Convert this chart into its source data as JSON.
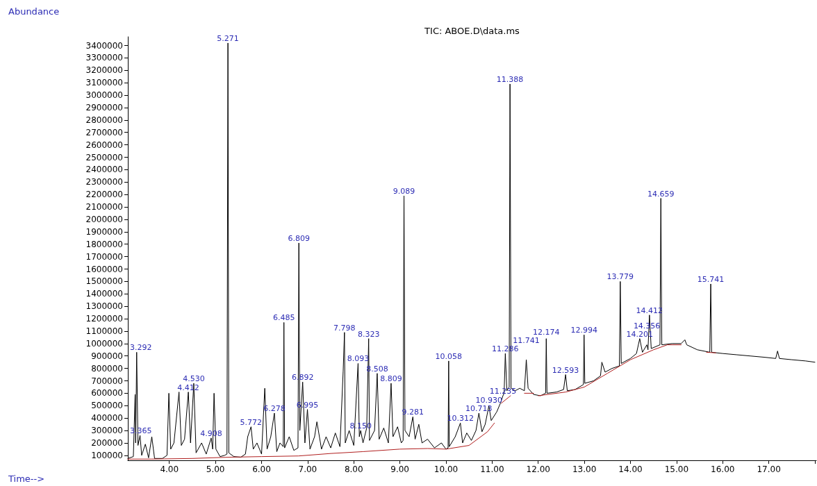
{
  "chart_data": {
    "type": "line",
    "title": "TIC: ABOE.D\\data.ms",
    "xlabel": "Time-->",
    "ylabel": "Abundance",
    "xlim": [
      3.1,
      18.03
    ],
    "xticks": [
      {
        "value": 4,
        "label": "4.00"
      },
      {
        "value": 5,
        "label": "5.00"
      },
      {
        "value": 6,
        "label": "6.00"
      },
      {
        "value": 7,
        "label": "7.00"
      },
      {
        "value": 8,
        "label": "8.00"
      },
      {
        "value": 9,
        "label": "9.00"
      },
      {
        "value": 10,
        "label": "10.00"
      },
      {
        "value": 11,
        "label": "11.00"
      },
      {
        "value": 12,
        "label": "12.00"
      },
      {
        "value": 13,
        "label": "13.00"
      },
      {
        "value": 14,
        "label": "14.00"
      },
      {
        "value": 15,
        "label": "15.00"
      },
      {
        "value": 16,
        "label": "16.00"
      },
      {
        "value": 17,
        "label": "17.00"
      },
      {
        "value": 18,
        "label": null
      }
    ],
    "ylim": [
      60000,
      3470000
    ],
    "yticks": [
      100000,
      200000,
      300000,
      400000,
      500000,
      600000,
      700000,
      800000,
      900000,
      1000000,
      1100000,
      1200000,
      1300000,
      1400000,
      1500000,
      1600000,
      1700000,
      1800000,
      1900000,
      2000000,
      2100000,
      2200000,
      2300000,
      2400000,
      2500000,
      2600000,
      2700000,
      2800000,
      2900000,
      3000000,
      3100000,
      3200000,
      3300000,
      3400000
    ],
    "series": [
      {
        "color": "#000000",
        "x": [
          3.1,
          3.22,
          3.258,
          3.27,
          3.292,
          3.32,
          3.365,
          3.4,
          3.48,
          3.55,
          3.62,
          3.68,
          3.85,
          3.95,
          3.99,
          4.03,
          4.1,
          4.21,
          4.26,
          4.33,
          4.412,
          4.46,
          4.53,
          4.58,
          4.7,
          4.8,
          4.908,
          4.94,
          4.97,
          5.01,
          5.1,
          5.2,
          5.25,
          5.271,
          5.29,
          5.4,
          5.55,
          5.65,
          5.7,
          5.772,
          5.82,
          5.9,
          6.0,
          6.07,
          6.12,
          6.2,
          6.278,
          6.33,
          6.4,
          6.47,
          6.485,
          6.5,
          6.6,
          6.7,
          6.79,
          6.809,
          6.83,
          6.892,
          6.94,
          6.995,
          7.05,
          7.15,
          7.2,
          7.3,
          7.4,
          7.5,
          7.6,
          7.7,
          7.77,
          7.798,
          7.815,
          7.9,
          8.0,
          8.093,
          8.12,
          8.15,
          8.2,
          8.28,
          8.323,
          8.34,
          8.45,
          8.508,
          8.55,
          8.65,
          8.75,
          8.809,
          8.85,
          8.95,
          9.03,
          9.07,
          9.089,
          9.11,
          9.2,
          9.281,
          9.33,
          9.41,
          9.48,
          9.6,
          9.75,
          9.9,
          10.0,
          10.045,
          10.058,
          10.07,
          10.2,
          10.312,
          10.36,
          10.45,
          10.55,
          10.65,
          10.713,
          10.78,
          10.85,
          10.93,
          10.98,
          11.1,
          11.18,
          11.235,
          11.26,
          11.286,
          11.32,
          11.37,
          11.388,
          11.41,
          11.5,
          11.6,
          11.7,
          11.741,
          11.78,
          11.9,
          12.05,
          12.16,
          12.174,
          12.19,
          12.4,
          12.55,
          12.593,
          12.63,
          12.8,
          12.98,
          12.994,
          13.01,
          13.2,
          13.35,
          13.38,
          13.45,
          13.6,
          13.76,
          13.779,
          13.8,
          14.0,
          14.13,
          14.201,
          14.26,
          14.356,
          14.38,
          14.412,
          14.45,
          14.64,
          14.659,
          14.68,
          14.9,
          15.1,
          15.18,
          15.22,
          15.45,
          15.72,
          15.741,
          15.76,
          16.0,
          16.3,
          16.6,
          16.9,
          17.15,
          17.19,
          17.23,
          17.5,
          17.8,
          18.0
        ],
        "values": [
          75000,
          90000,
          590000,
          200000,
          930000,
          180000,
          260000,
          100000,
          190000,
          80000,
          250000,
          75000,
          75000,
          100000,
          600000,
          150000,
          200000,
          610000,
          180000,
          230000,
          610000,
          200000,
          680000,
          120000,
          200000,
          110000,
          240000,
          150000,
          600000,
          150000,
          90000,
          100000,
          110000,
          3420000,
          120000,
          90000,
          85000,
          110000,
          250000,
          330000,
          150000,
          200000,
          110000,
          640000,
          150000,
          250000,
          440000,
          130000,
          200000,
          170000,
          1170000,
          160000,
          250000,
          140000,
          160000,
          1810000,
          300000,
          690000,
          200000,
          470000,
          150000,
          250000,
          370000,
          150000,
          250000,
          160000,
          280000,
          170000,
          780000,
          1090000,
          200000,
          300000,
          180000,
          840000,
          250000,
          300000,
          200000,
          320000,
          1040000,
          220000,
          300000,
          760000,
          230000,
          320000,
          200000,
          680000,
          250000,
          330000,
          200000,
          220000,
          2190000,
          300000,
          250000,
          410000,
          230000,
          350000,
          200000,
          230000,
          160000,
          200000,
          150000,
          160000,
          860000,
          170000,
          250000,
          360000,
          200000,
          280000,
          220000,
          300000,
          440000,
          290000,
          350000,
          500000,
          380000,
          450000,
          520000,
          580000,
          600000,
          920000,
          620000,
          650000,
          3090000,
          640000,
          620000,
          640000,
          620000,
          870000,
          640000,
          590000,
          580000,
          600000,
          1040000,
          600000,
          610000,
          630000,
          750000,
          620000,
          630000,
          670000,
          1070000,
          680000,
          700000,
          740000,
          850000,
          770000,
          800000,
          820000,
          1500000,
          840000,
          880000,
          920000,
          1040000,
          930000,
          990000,
          950000,
          1230000,
          960000,
          990000,
          2170000,
          990000,
          1000000,
          1000000,
          1030000,
          990000,
          950000,
          930000,
          1480000,
          930000,
          920000,
          910000,
          900000,
          890000,
          880000,
          940000,
          880000,
          870000,
          860000,
          850000
        ]
      },
      {
        "color": "#b01e1e",
        "x": [
          3.1,
          3.6,
          4.5,
          5.3,
          6.0,
          6.8,
          7.5,
          8.2,
          9.0,
          9.6,
          10.0,
          10.5,
          10.9,
          11.05,
          11.12,
          11.2,
          11.4,
          11.55,
          11.7,
          11.9,
          11.95,
          12.0,
          12.6,
          13.0,
          13.5,
          14.0,
          14.5,
          14.8,
          15.1,
          15.4,
          15.65,
          15.85
        ],
        "values": [
          70000,
          70000,
          75000,
          85000,
          90000,
          95000,
          115000,
          130000,
          150000,
          155000,
          150000,
          180000,
          290000,
          360000,
          null,
          520000,
          580000,
          null,
          600000,
          600000,
          null,
          580000,
          610000,
          650000,
          760000,
          870000,
          950000,
          990000,
          990000,
          null,
          930000,
          925000
        ]
      }
    ],
    "annotations": [
      {
        "text": "3.292",
        "x": 3.292,
        "y": 930000
      },
      {
        "text": "3.365",
        "x": 3.365,
        "y": 260000
      },
      {
        "text": "4.412",
        "x": 4.412,
        "y": 610000
      },
      {
        "text": "4.530",
        "x": 4.53,
        "y": 680000
      },
      {
        "text": "4.908",
        "x": 4.908,
        "y": 240000
      },
      {
        "text": "5.271",
        "x": 5.271,
        "y": 3420000
      },
      {
        "text": "5.772",
        "x": 5.772,
        "y": 330000
      },
      {
        "text": "6.278",
        "x": 6.278,
        "y": 440000
      },
      {
        "text": "6.485",
        "x": 6.485,
        "y": 1170000
      },
      {
        "text": "6.809",
        "x": 6.809,
        "y": 1810000
      },
      {
        "text": "6.892",
        "x": 6.892,
        "y": 690000
      },
      {
        "text": "6.995",
        "x": 6.995,
        "y": 470000
      },
      {
        "text": "7.798",
        "x": 7.798,
        "y": 1090000
      },
      {
        "text": "8.093",
        "x": 8.093,
        "y": 840000
      },
      {
        "text": "8.150",
        "x": 8.15,
        "y": 300000
      },
      {
        "text": "8.323",
        "x": 8.323,
        "y": 1040000
      },
      {
        "text": "8.508",
        "x": 8.508,
        "y": 760000
      },
      {
        "text": "8.809",
        "x": 8.809,
        "y": 680000
      },
      {
        "text": "9.089",
        "x": 9.089,
        "y": 2190000
      },
      {
        "text": "9.281",
        "x": 9.281,
        "y": 410000
      },
      {
        "text": "10.058",
        "x": 10.058,
        "y": 860000
      },
      {
        "text": "10.312",
        "x": 10.312,
        "y": 360000
      },
      {
        "text": "10.713",
        "x": 10.713,
        "y": 440000
      },
      {
        "text": "10.930",
        "x": 10.93,
        "y": 500000
      },
      {
        "text": "11.235",
        "x": 11.235,
        "y": 580000
      },
      {
        "text": "11.286",
        "x": 11.286,
        "y": 920000
      },
      {
        "text": "11.388",
        "x": 11.388,
        "y": 3090000
      },
      {
        "text": "11.741",
        "x": 11.741,
        "y": 870000
      },
      {
        "text": "12.174",
        "x": 12.174,
        "y": 1040000
      },
      {
        "text": "12.593",
        "x": 12.593,
        "y": 750000
      },
      {
        "text": "12.994",
        "x": 12.994,
        "y": 1070000
      },
      {
        "text": "13.779",
        "x": 13.779,
        "y": 1500000
      },
      {
        "text": "14.201",
        "x": 14.201,
        "y": 1040000
      },
      {
        "text": "14.356",
        "x": 14.356,
        "y": 990000
      },
      {
        "text": "14.412",
        "x": 14.412,
        "y": 1230000
      },
      {
        "text": "14.659",
        "x": 14.659,
        "y": 2170000
      },
      {
        "text": "15.741",
        "x": 15.741,
        "y": 1480000
      }
    ]
  }
}
